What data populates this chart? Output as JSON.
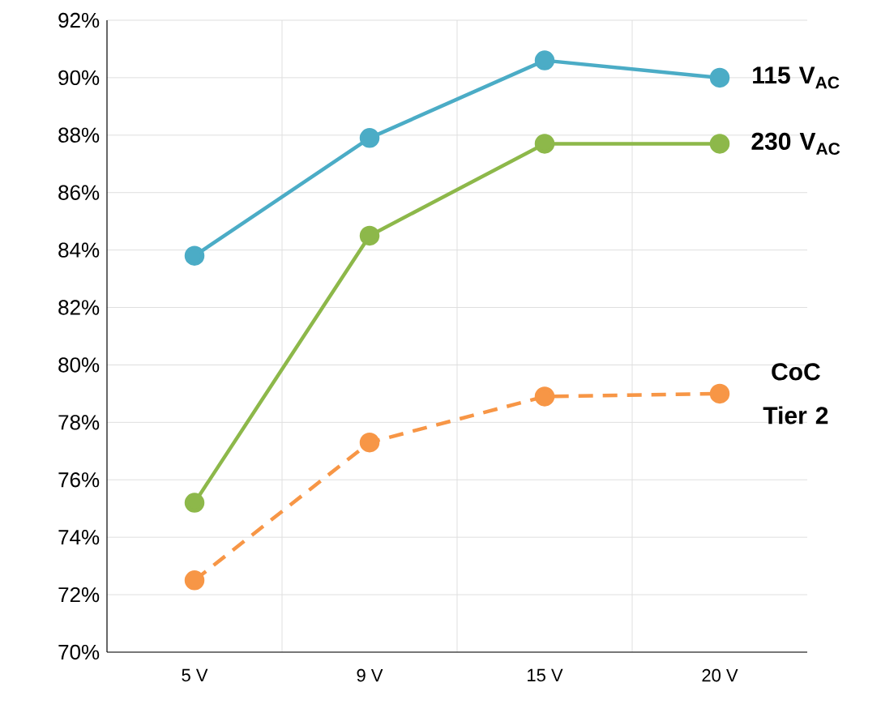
{
  "chart_data": {
    "type": "line",
    "categories": [
      "5 V",
      "9 V",
      "15 V",
      "20 V"
    ],
    "ylim": [
      70,
      92
    ],
    "yticks": [
      {
        "value": 70,
        "label": "70%"
      },
      {
        "value": 72,
        "label": "72%"
      },
      {
        "value": 74,
        "label": "74%"
      },
      {
        "value": 76,
        "label": "76%"
      },
      {
        "value": 78,
        "label": "78%"
      },
      {
        "value": 80,
        "label": "80%"
      },
      {
        "value": 82,
        "label": "82%"
      },
      {
        "value": 84,
        "label": "84%"
      },
      {
        "value": 86,
        "label": "86%"
      },
      {
        "value": 88,
        "label": "88%"
      },
      {
        "value": 90,
        "label": "90%"
      },
      {
        "value": 92,
        "label": "92%"
      }
    ],
    "grid": true,
    "marker": "circle",
    "series": [
      {
        "name": "115 V$_{AC}$",
        "color": "#4bacc6",
        "values": [
          83.8,
          87.9,
          90.6,
          90.0
        ],
        "line_style": "solid"
      },
      {
        "name": "230 V$_{AC}$",
        "color": "#8db84a",
        "values": [
          75.2,
          84.5,
          87.7,
          87.7
        ],
        "line_style": "solid"
      },
      {
        "name": "CoC Tier 2",
        "color": "#f79646",
        "values": [
          72.5,
          77.3,
          78.9,
          79.0
        ],
        "line_style": "dashed"
      }
    ]
  }
}
